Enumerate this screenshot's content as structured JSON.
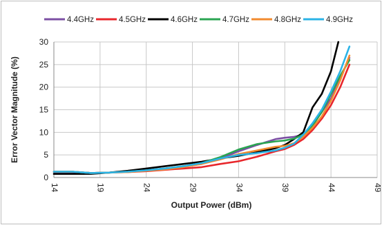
{
  "chart_data": {
    "type": "line",
    "title": "",
    "xlabel": "Output Power (dBm)",
    "ylabel": "Error Vector Magnitude (%)",
    "xlim": [
      14,
      49
    ],
    "ylim": [
      0,
      30
    ],
    "xticks": [
      "14",
      "19",
      "24",
      "29",
      "34",
      "39",
      "44",
      "49"
    ],
    "yticks": [
      "0",
      "5",
      "10",
      "15",
      "20",
      "25",
      "30"
    ],
    "grid": true,
    "legend_position": "top",
    "series": [
      {
        "name": "4.4GHz",
        "color": "#7b4fa3",
        "x": [
          14,
          16,
          18,
          20,
          22,
          24,
          26,
          28,
          30,
          32,
          34,
          36,
          38,
          39,
          40,
          41,
          42,
          43,
          44,
          45,
          46
        ],
        "y": [
          1.2,
          1.2,
          1.0,
          1.1,
          1.3,
          1.6,
          2.0,
          2.4,
          3.0,
          4.2,
          5.8,
          7.2,
          8.5,
          8.8,
          9.0,
          9.5,
          11.5,
          14.5,
          17.5,
          22.0,
          26.5
        ]
      },
      {
        "name": "4.5GHz",
        "color": "#e8262b",
        "x": [
          14,
          16,
          18,
          20,
          22,
          24,
          26,
          28,
          30,
          32,
          34,
          36,
          38,
          39,
          40,
          41,
          42,
          43,
          44,
          45,
          46
        ],
        "y": [
          1.3,
          1.3,
          1.0,
          1.1,
          1.2,
          1.4,
          1.7,
          2.0,
          2.3,
          3.0,
          3.6,
          4.6,
          5.8,
          6.3,
          7.2,
          8.5,
          10.5,
          13.0,
          16.0,
          20.0,
          25.0
        ]
      },
      {
        "name": "4.6GHz",
        "color": "#000000",
        "x": [
          14,
          16,
          18,
          20,
          22,
          24,
          26,
          28,
          30,
          32,
          34,
          36,
          38,
          39,
          40,
          41,
          42,
          43,
          44,
          44.8
        ],
        "y": [
          0.8,
          0.8,
          0.8,
          1.1,
          1.5,
          2.0,
          2.5,
          3.0,
          3.5,
          4.2,
          4.8,
          5.6,
          6.5,
          7.2,
          8.5,
          10.0,
          15.5,
          18.5,
          23.5,
          30.0
        ]
      },
      {
        "name": "4.7GHz",
        "color": "#2aa452",
        "x": [
          14,
          16,
          18,
          20,
          22,
          24,
          26,
          28,
          30,
          32,
          34,
          36,
          38,
          39,
          40,
          41,
          42,
          43,
          44,
          45,
          46
        ],
        "y": [
          1.3,
          1.3,
          1.0,
          1.1,
          1.3,
          1.6,
          2.0,
          2.5,
          3.2,
          4.5,
          6.2,
          7.4,
          8.0,
          8.2,
          8.6,
          9.5,
          11.5,
          14.5,
          18.5,
          22.5,
          26.0
        ]
      },
      {
        "name": "4.8GHz",
        "color": "#f28a2e",
        "x": [
          14,
          16,
          18,
          20,
          22,
          24,
          26,
          28,
          30,
          32,
          34,
          36,
          38,
          39,
          40,
          41,
          42,
          43,
          44,
          45,
          46
        ],
        "y": [
          1.3,
          1.3,
          1.0,
          1.1,
          1.2,
          1.5,
          1.8,
          2.3,
          3.0,
          4.0,
          5.2,
          6.0,
          6.8,
          7.0,
          7.6,
          9.0,
          11.0,
          13.5,
          17.0,
          21.5,
          27.0
        ]
      },
      {
        "name": "4.9GHz",
        "color": "#2ab3e6",
        "x": [
          14,
          16,
          18,
          20,
          22,
          24,
          26,
          28,
          30,
          32,
          34,
          36,
          38,
          39,
          40,
          41,
          42,
          43,
          44,
          45,
          46
        ],
        "y": [
          1.3,
          1.3,
          1.0,
          1.1,
          1.3,
          1.6,
          2.0,
          2.5,
          3.2,
          4.2,
          5.0,
          5.4,
          6.0,
          6.6,
          7.5,
          9.5,
          12.0,
          15.0,
          19.0,
          23.5,
          29.0
        ]
      }
    ]
  }
}
